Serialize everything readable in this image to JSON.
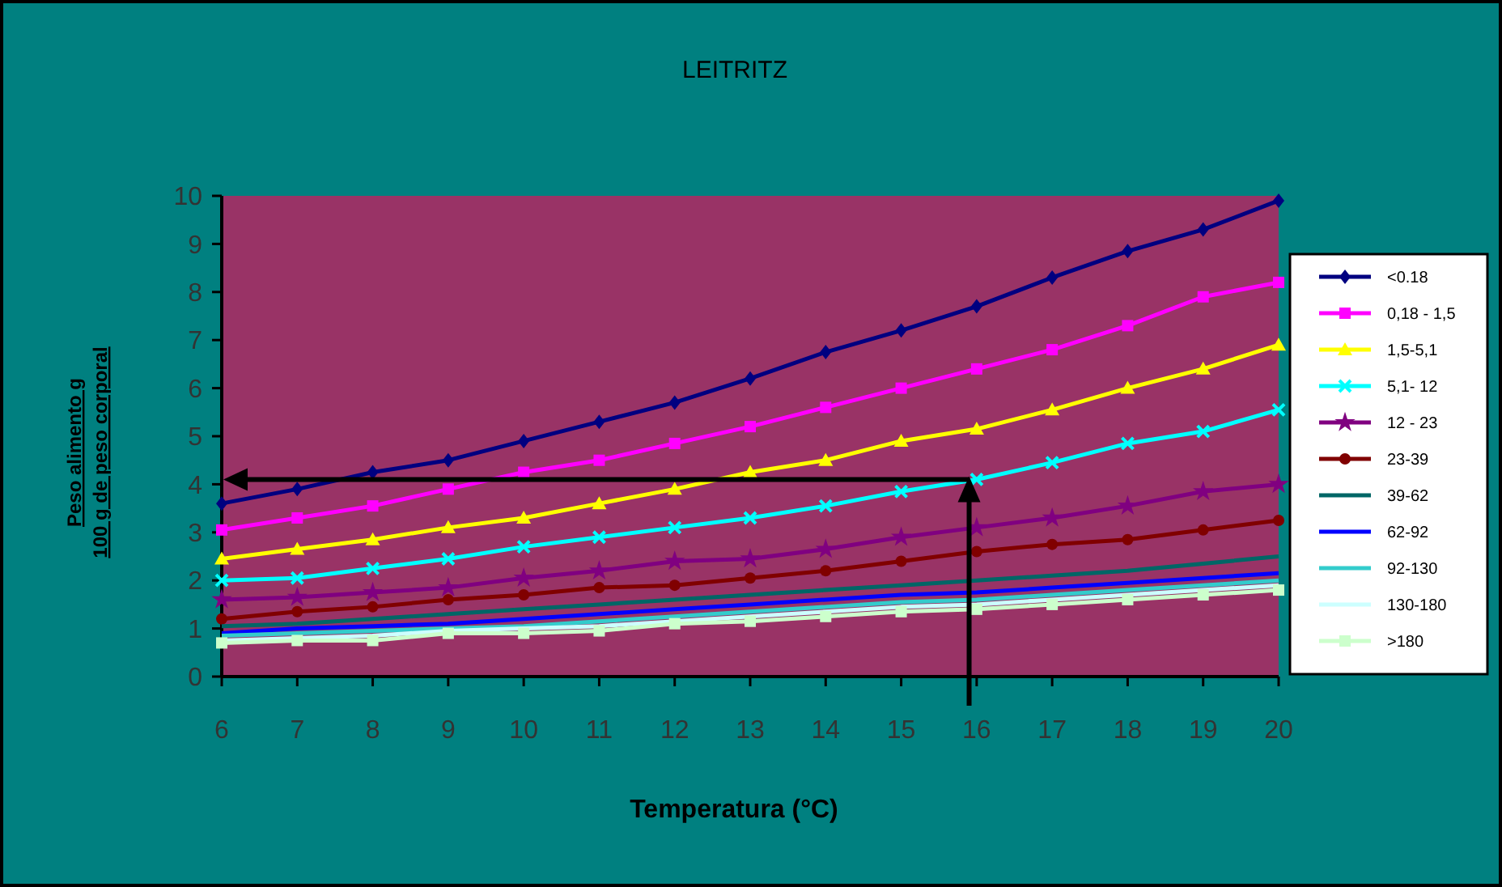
{
  "chart_data": {
    "type": "line",
    "title": "LEITRITZ",
    "xlabel": "Temperatura (°C)",
    "ylabel": "Peso alimento g\n100 g de peso corporal",
    "x": [
      6,
      7,
      8,
      9,
      10,
      11,
      12,
      13,
      14,
      15,
      16,
      17,
      18,
      19,
      20
    ],
    "xlim": [
      6,
      20
    ],
    "xticks": [
      6,
      7,
      8,
      9,
      10,
      11,
      12,
      13,
      14,
      15,
      16,
      17,
      18,
      19,
      20
    ],
    "ylim": [
      0,
      10
    ],
    "yticks": [
      0,
      1,
      2,
      3,
      4,
      5,
      6,
      7,
      8,
      9,
      10
    ],
    "grid": false,
    "legend": "right",
    "series": [
      {
        "name": "<0.18",
        "color": "#000080",
        "marker": "diamond",
        "values": [
          3.6,
          3.9,
          4.25,
          4.5,
          4.9,
          5.3,
          5.7,
          6.2,
          6.75,
          7.2,
          7.7,
          8.3,
          8.85,
          9.3,
          9.9
        ]
      },
      {
        "name": "0,18 - 1,5",
        "color": "#ff00ff",
        "marker": "square",
        "values": [
          3.05,
          3.3,
          3.55,
          3.9,
          4.25,
          4.5,
          4.85,
          5.2,
          5.6,
          6.0,
          6.4,
          6.8,
          7.3,
          7.9,
          8.2
        ]
      },
      {
        "name": "1,5-5,1",
        "color": "#ffff00",
        "marker": "triangle",
        "values": [
          2.45,
          2.65,
          2.85,
          3.1,
          3.3,
          3.6,
          3.9,
          4.25,
          4.5,
          4.9,
          5.15,
          5.55,
          6.0,
          6.4,
          6.9
        ]
      },
      {
        "name": "5,1- 12",
        "color": "#00ffff",
        "marker": "cross",
        "values": [
          2.0,
          2.05,
          2.25,
          2.45,
          2.7,
          2.9,
          3.1,
          3.3,
          3.55,
          3.85,
          4.1,
          4.45,
          4.85,
          5.1,
          5.55
        ]
      },
      {
        "name": "12 - 23",
        "color": "#800080",
        "marker": "star",
        "values": [
          1.6,
          1.65,
          1.75,
          1.85,
          2.05,
          2.2,
          2.4,
          2.45,
          2.65,
          2.9,
          3.1,
          3.3,
          3.55,
          3.85,
          4.0
        ]
      },
      {
        "name": "23-39",
        "color": "#800000",
        "marker": "circle",
        "values": [
          1.2,
          1.35,
          1.45,
          1.6,
          1.7,
          1.85,
          1.9,
          2.05,
          2.2,
          2.4,
          2.6,
          2.75,
          2.85,
          3.05,
          3.25
        ]
      },
      {
        "name": "39-62",
        "color": "#006666",
        "marker": "none",
        "values": [
          1.05,
          1.1,
          1.2,
          1.3,
          1.4,
          1.5,
          1.6,
          1.7,
          1.8,
          1.9,
          2.0,
          2.1,
          2.2,
          2.35,
          2.5
        ]
      },
      {
        "name": "62-92",
        "color": "#0000ff",
        "marker": "none",
        "values": [
          0.9,
          1.0,
          1.05,
          1.1,
          1.2,
          1.3,
          1.4,
          1.5,
          1.6,
          1.7,
          1.75,
          1.85,
          1.95,
          2.05,
          2.15
        ]
      },
      {
        "name": "92-130",
        "color": "#33cccc",
        "marker": "none",
        "values": [
          0.85,
          0.9,
          0.95,
          1.0,
          1.05,
          1.15,
          1.25,
          1.35,
          1.45,
          1.55,
          1.6,
          1.7,
          1.8,
          1.9,
          2.0
        ]
      },
      {
        "name": "130-180",
        "color": "#ccffff",
        "marker": "none",
        "values": [
          0.75,
          0.8,
          0.85,
          0.95,
          1.0,
          1.05,
          1.15,
          1.25,
          1.35,
          1.45,
          1.5,
          1.6,
          1.7,
          1.8,
          1.9
        ]
      },
      {
        "name": ">180",
        "color": "#ccffcc",
        "marker": "square",
        "values": [
          0.7,
          0.75,
          0.75,
          0.9,
          0.9,
          0.95,
          1.1,
          1.15,
          1.25,
          1.35,
          1.4,
          1.5,
          1.6,
          1.7,
          1.8
        ]
      }
    ]
  }
}
